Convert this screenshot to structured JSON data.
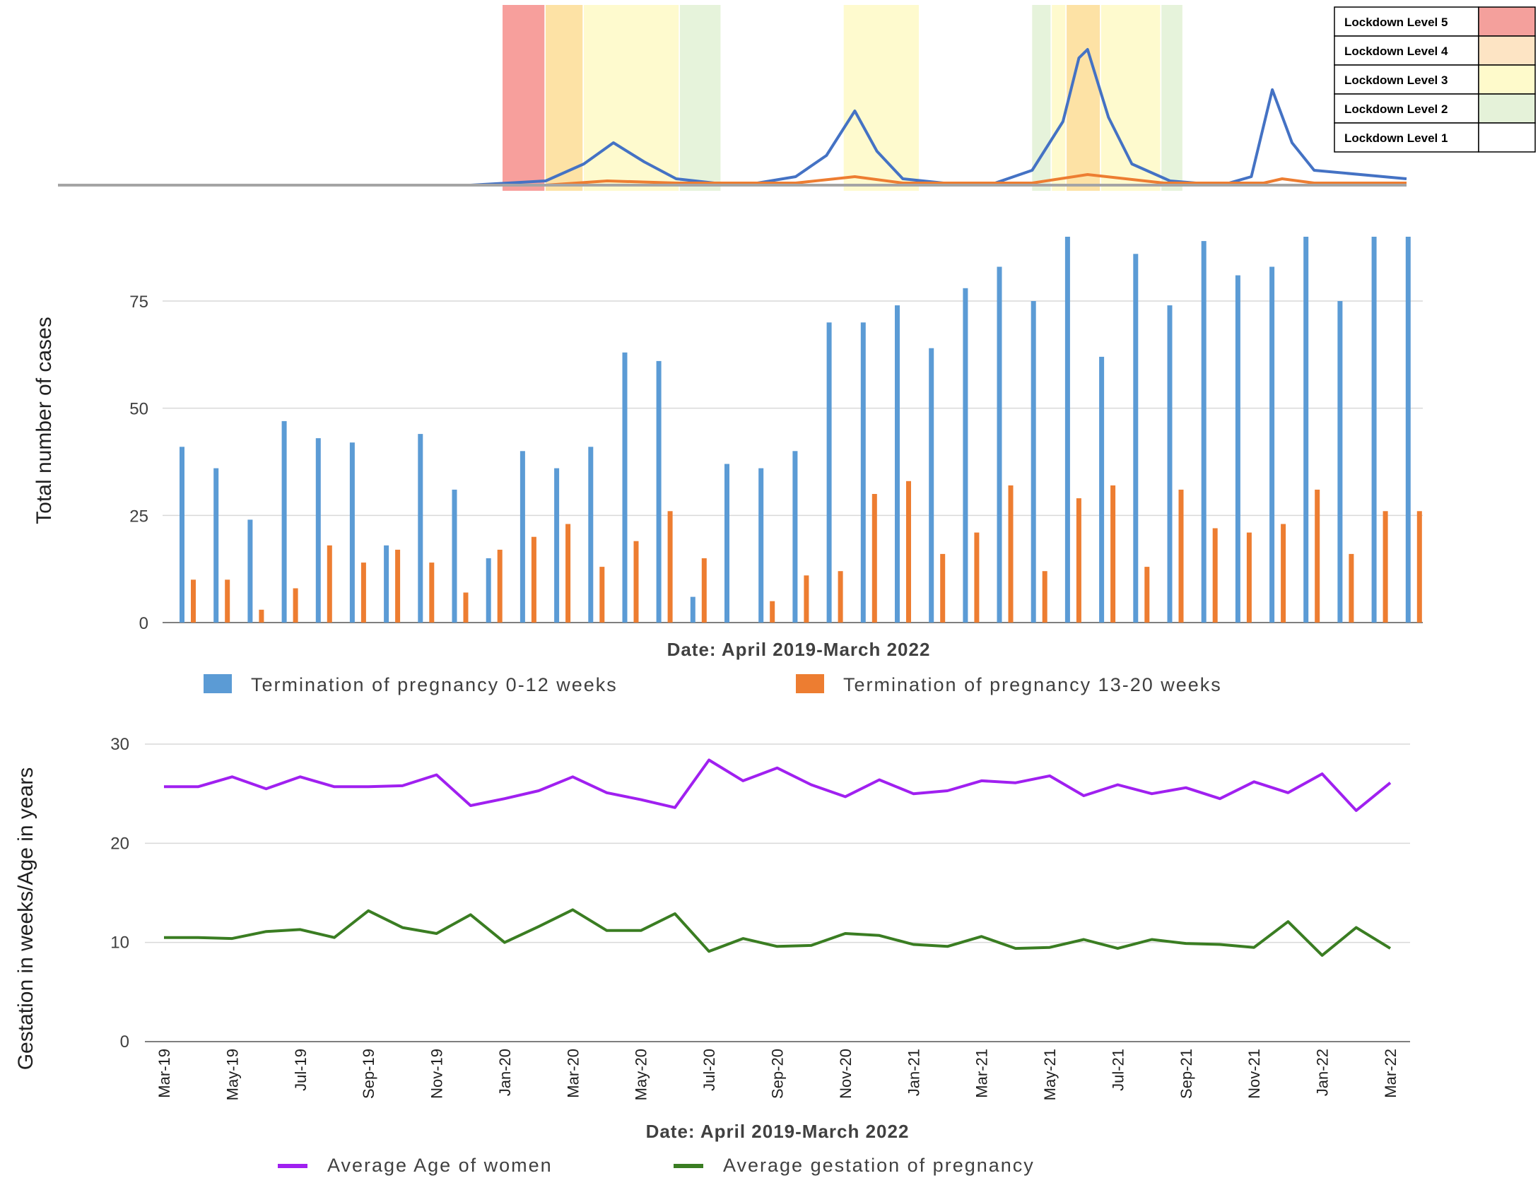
{
  "chart_data": [
    {
      "type": "line",
      "title": "",
      "legend": [
        {
          "label": "Lockdown Level 5",
          "color": "#f4a09c"
        },
        {
          "label": "Lockdown Level 4",
          "color": "#fde4c4"
        },
        {
          "label": "Lockdown Level 3",
          "color": "#fefacb"
        },
        {
          "label": "Lockdown Level 2",
          "color": "#e5f2d9"
        },
        {
          "label": "Lockdown Level 1",
          "color": "#ffffff"
        }
      ],
      "lockdown_periods": [
        {
          "level": 5,
          "start": "2020-03-27",
          "end": "2020-04-30",
          "color": "#f79a97"
        },
        {
          "level": 4,
          "start": "2020-05-01",
          "end": "2020-05-31",
          "color": "#fde0a0"
        },
        {
          "level": 3,
          "start": "2020-06-01",
          "end": "2020-08-17",
          "color": "#fefacb"
        },
        {
          "level": 2,
          "start": "2020-08-18",
          "end": "2020-09-20",
          "color": "#e5f2d9"
        },
        {
          "level": 3,
          "start": "2020-12-29",
          "end": "2021-02-28",
          "color": "#fefacb"
        },
        {
          "level": 2,
          "start": "2021-05-31",
          "end": "2021-06-15",
          "color": "#e5f2d9"
        },
        {
          "level": 3,
          "start": "2021-06-16",
          "end": "2021-06-27",
          "color": "#fefacb"
        },
        {
          "level": 4,
          "start": "2021-06-28",
          "end": "2021-07-25",
          "color": "#fde0a0"
        },
        {
          "level": 3,
          "start": "2021-07-26",
          "end": "2021-09-12",
          "color": "#fefacb"
        },
        {
          "level": 2,
          "start": "2021-09-13",
          "end": "2021-09-30",
          "color": "#e5f2d9"
        }
      ],
      "series": [
        {
          "color": "#4472c4",
          "points": [
            [
              "2019-04-01",
              0
            ],
            [
              "2020-03-01",
              0
            ],
            [
              "2020-05-01",
              2
            ],
            [
              "2020-06-01",
              10
            ],
            [
              "2020-06-25",
              20
            ],
            [
              "2020-07-20",
              11
            ],
            [
              "2020-08-15",
              3
            ],
            [
              "2020-09-15",
              1
            ],
            [
              "2020-10-20",
              1
            ],
            [
              "2020-11-20",
              4
            ],
            [
              "2020-12-15",
              14
            ],
            [
              "2021-01-07",
              35
            ],
            [
              "2021-01-25",
              16
            ],
            [
              "2021-02-15",
              3
            ],
            [
              "2021-03-20",
              1
            ],
            [
              "2021-05-01",
              1
            ],
            [
              "2021-05-31",
              7
            ],
            [
              "2021-06-25",
              30
            ],
            [
              "2021-07-08",
              60
            ],
            [
              "2021-07-15",
              64
            ],
            [
              "2021-08-01",
              32
            ],
            [
              "2021-08-20",
              10
            ],
            [
              "2021-09-20",
              2
            ],
            [
              "2021-11-01",
              0
            ],
            [
              "2021-11-25",
              4
            ],
            [
              "2021-12-12",
              45
            ],
            [
              "2021-12-28",
              20
            ],
            [
              "2022-01-15",
              7
            ],
            [
              "2022-03-31",
              3
            ]
          ]
        },
        {
          "color": "#ed7d31",
          "points": [
            [
              "2019-04-01",
              0
            ],
            [
              "2020-05-01",
              0
            ],
            [
              "2020-06-20",
              2
            ],
            [
              "2020-08-15",
              1
            ],
            [
              "2020-11-20",
              1
            ],
            [
              "2021-01-07",
              4
            ],
            [
              "2021-02-15",
              1
            ],
            [
              "2021-05-31",
              1
            ],
            [
              "2021-07-15",
              5
            ],
            [
              "2021-09-15",
              1
            ],
            [
              "2021-12-05",
              1
            ],
            [
              "2021-12-20",
              3
            ],
            [
              "2022-01-15",
              1
            ],
            [
              "2022-03-31",
              1
            ]
          ]
        },
        {
          "color": "#a5a5a5",
          "points": [
            [
              "2019-04-01",
              0
            ],
            [
              "2022-03-31",
              0
            ]
          ]
        }
      ],
      "ylim": [
        0,
        70
      ]
    },
    {
      "type": "bar",
      "xlabel": "Date: April 2019-March 2022",
      "ylabel": "Total number of cases",
      "yticks": [
        0,
        25,
        50,
        75
      ],
      "ylim": [
        0,
        90
      ],
      "series": [
        {
          "name": "Termination of pregnancy 0-12 weeks",
          "color": "#5b9bd5",
          "values": [
            41,
            36,
            24,
            47,
            43,
            42,
            18,
            44,
            31,
            15,
            40,
            36,
            41,
            63,
            61,
            6,
            37,
            36,
            40,
            70,
            70,
            74,
            64,
            78,
            83,
            75,
            90,
            62,
            86,
            74,
            89,
            81,
            83,
            90,
            75,
            90,
            90
          ]
        },
        {
          "name": "Termination of pregnancy 13-20 weeks",
          "color": "#ed7d31",
          "values": [
            10,
            10,
            3,
            8,
            18,
            14,
            17,
            14,
            7,
            17,
            20,
            23,
            13,
            19,
            26,
            15,
            0,
            5,
            11,
            12,
            30,
            33,
            16,
            21,
            32,
            12,
            29,
            32,
            13,
            31,
            22,
            21,
            23,
            31,
            16,
            26,
            26
          ]
        }
      ]
    },
    {
      "type": "line",
      "xlabel": "Date: April 2019-March 2022",
      "ylabel": "Gestation in weeks/Age in years",
      "yticks": [
        0,
        10,
        20,
        30
      ],
      "ylim": [
        0,
        30
      ],
      "x": [
        "Mar-19",
        "Apr-19",
        "May-19",
        "Jun-19",
        "Jul-19",
        "Aug-19",
        "Sep-19",
        "Oct-19",
        "Nov-19",
        "Dec-19",
        "Jan-20",
        "Feb-20",
        "Mar-20",
        "Apr-20",
        "May-20",
        "Jun-20",
        "Jul-20",
        "Aug-20",
        "Sep-20",
        "Oct-20",
        "Nov-20",
        "Dec-20",
        "Jan-21",
        "Feb-21",
        "Mar-21",
        "Apr-21",
        "May-21",
        "Jun-21",
        "Jul-21",
        "Aug-21",
        "Sep-21",
        "Oct-21",
        "Nov-21",
        "Dec-21",
        "Jan-22",
        "Feb-22",
        "Mar-22"
      ],
      "xtick_labels": [
        "Mar-19",
        "May-19",
        "Jul-19",
        "Sep-19",
        "Nov-19",
        "Jan-20",
        "Mar-20",
        "May-20",
        "Jul-20",
        "Sep-20",
        "Nov-20",
        "Jan-21",
        "Mar-21",
        "May-21",
        "Jul-21",
        "Sep-21",
        "Nov-21",
        "Jan-22",
        "Mar-22"
      ],
      "series": [
        {
          "name": "Average Age of women",
          "color": "#a020f0",
          "values": [
            25.7,
            25.7,
            26.7,
            25.5,
            26.7,
            25.7,
            25.7,
            25.8,
            26.9,
            23.8,
            24.5,
            25.3,
            26.7,
            25.1,
            24.4,
            23.6,
            28.4,
            26.3,
            27.6,
            25.9,
            24.7,
            26.4,
            25.0,
            25.3,
            26.3,
            26.1,
            26.8,
            24.8,
            25.9,
            25.0,
            25.6,
            24.5,
            26.2,
            25.1,
            27.0,
            23.3,
            26.1
          ]
        },
        {
          "name": "Average gestation of pregnancy",
          "color": "#3a7d22",
          "values": [
            10.5,
            10.5,
            10.4,
            11.1,
            11.3,
            10.5,
            13.2,
            11.5,
            10.9,
            12.8,
            10.0,
            11.6,
            13.3,
            11.2,
            11.2,
            12.9,
            9.1,
            10.4,
            9.6,
            9.7,
            10.9,
            10.7,
            9.8,
            9.6,
            10.6,
            9.4,
            9.5,
            10.3,
            9.4,
            10.3,
            9.9,
            9.8,
            9.5,
            12.1,
            8.7,
            11.5,
            9.4
          ]
        }
      ]
    }
  ]
}
